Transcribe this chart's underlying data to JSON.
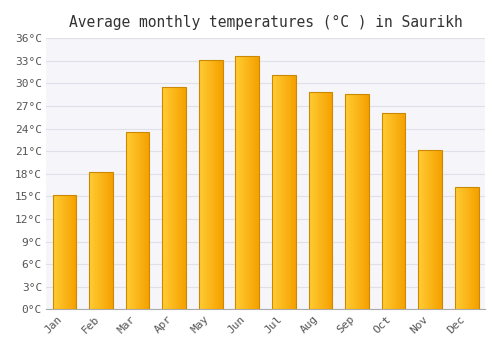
{
  "title": "Average monthly temperatures (°C ) in Saurikh",
  "months": [
    "Jan",
    "Feb",
    "Mar",
    "Apr",
    "May",
    "Jun",
    "Jul",
    "Aug",
    "Sep",
    "Oct",
    "Nov",
    "Dec"
  ],
  "values": [
    15.2,
    18.2,
    23.6,
    29.5,
    33.1,
    33.6,
    31.1,
    28.9,
    28.6,
    26.1,
    21.2,
    16.3
  ],
  "bar_color_left": "#FFCC33",
  "bar_color_right": "#F5A000",
  "bar_edge_color": "#CC8800",
  "background_color": "#FFFFFF",
  "plot_bg_color": "#F5F5FA",
  "grid_color": "#E0E0E8",
  "ytick_step": 3,
  "ymin": 0,
  "ymax": 36,
  "title_fontsize": 10.5,
  "tick_fontsize": 8,
  "label_color": "#555555"
}
